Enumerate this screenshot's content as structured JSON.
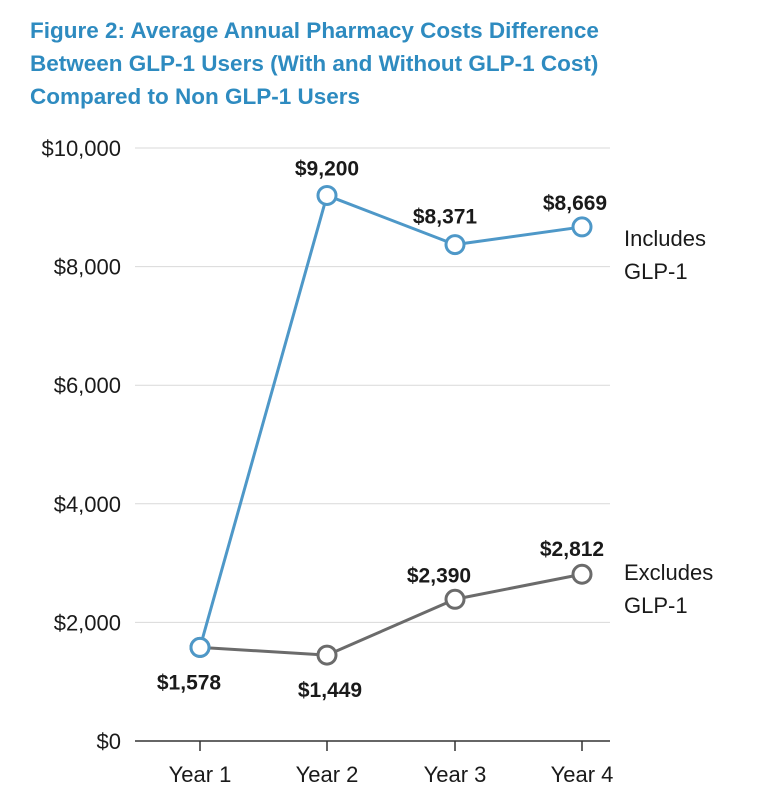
{
  "title_lines": [
    "Figure 2: Average Annual Pharmacy Costs Difference",
    "Between GLP-1 Users (With and Without GLP-1 Cost)",
    "Compared to Non GLP-1 Users"
  ],
  "chart_data": {
    "type": "line",
    "title": "Figure 2: Average Annual Pharmacy Costs Difference Between GLP-1 Users (With and Without GLP-1 Cost) Compared to Non GLP-1 Users",
    "xlabel": "",
    "ylabel": "",
    "categories": [
      "Year 1",
      "Year 2",
      "Year 3",
      "Year 4"
    ],
    "ylim": [
      0,
      10000
    ],
    "yticks": [
      0,
      2000,
      4000,
      6000,
      8000,
      10000
    ],
    "ytick_labels": [
      "$0",
      "$2,000",
      "$4,000",
      "$6,000",
      "$8,000",
      "$10,000"
    ],
    "grid": true,
    "series": [
      {
        "name": "Includes GLP-1",
        "label_lines": [
          "Includes",
          "GLP-1"
        ],
        "color": "#4e98c8",
        "values": [
          1578,
          9200,
          8371,
          8669
        ],
        "point_labels": [
          "",
          "$9,200",
          "$8,371",
          "$8,669"
        ]
      },
      {
        "name": "Excludes GLP-1",
        "label_lines": [
          "Excludes",
          "GLP-1"
        ],
        "color": "#6b6b6b",
        "values": [
          1578,
          1449,
          2390,
          2812
        ],
        "point_labels": [
          "$1,578",
          "$1,449",
          "$2,390",
          "$2,812"
        ]
      }
    ]
  }
}
